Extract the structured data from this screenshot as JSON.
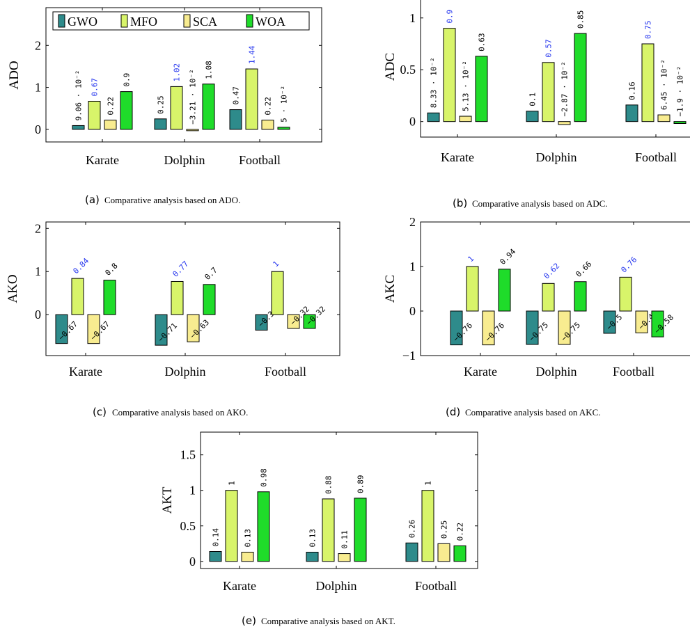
{
  "colors": {
    "GWO": "#2e8b8b",
    "MFO": "#d8f46a",
    "SCA": "#f8ec90",
    "WOA": "#1fdc2a",
    "best_label": "#2233ee"
  },
  "chart_data": [
    {
      "id": "ado",
      "type": "bar",
      "caption_letter": "(a)",
      "caption_text": "Comparative analysis based on ADO.",
      "ylabel": "ADO",
      "categories": [
        "Karate",
        "Dolphin",
        "Football"
      ],
      "ylim": [
        -0.3,
        2.9
      ],
      "yticks": [
        0,
        1,
        2
      ],
      "label_style": "vertical",
      "legend": {
        "shown": true,
        "placement": "top"
      },
      "series": [
        {
          "name": "GWO",
          "values": [
            0.0906,
            0.25,
            0.47
          ],
          "labels": [
            "9.06 · 10⁻²",
            "0.25",
            "0.47"
          ]
        },
        {
          "name": "MFO",
          "values": [
            0.67,
            1.02,
            1.44
          ],
          "labels": [
            "0.67",
            "1.02",
            "1.44"
          ],
          "best": true
        },
        {
          "name": "SCA",
          "values": [
            0.22,
            -0.0321,
            0.22
          ],
          "labels": [
            "0.22",
            "−3.21 · 10⁻²",
            "0.22"
          ]
        },
        {
          "name": "WOA",
          "values": [
            0.9,
            1.08,
            0.05
          ],
          "labels": [
            "0.9",
            "1.08",
            "5 · 10⁻²"
          ]
        }
      ]
    },
    {
      "id": "adc",
      "type": "bar",
      "caption_letter": "(b)",
      "caption_text": "Comparative analysis based on ADC.",
      "ylabel": "ADC",
      "categories": [
        "Karate",
        "Dolphin",
        "Football"
      ],
      "ylim": [
        -0.15,
        1.2
      ],
      "yticks": [
        0,
        0.5,
        1
      ],
      "label_style": "vertical",
      "series": [
        {
          "name": "GWO",
          "values": [
            0.0833,
            0.1,
            0.16
          ],
          "labels": [
            "8.33 · 10⁻²",
            "0.1",
            "0.16"
          ]
        },
        {
          "name": "MFO",
          "values": [
            0.9,
            0.57,
            0.75
          ],
          "labels": [
            "0.9",
            "0.57",
            "0.75"
          ],
          "best": true
        },
        {
          "name": "SCA",
          "values": [
            0.0513,
            -0.0287,
            0.0645
          ],
          "labels": [
            "5.13 · 10⁻²",
            "−2.87 · 10⁻²",
            "6.45 · 10⁻²"
          ]
        },
        {
          "name": "WOA",
          "values": [
            0.63,
            0.85,
            -0.019
          ],
          "labels": [
            "0.63",
            "0.85",
            "−1.9 · 10⁻²"
          ]
        }
      ]
    },
    {
      "id": "ako",
      "type": "bar",
      "caption_letter": "(c)",
      "caption_text": "Comparative analysis based on AKO.",
      "ylabel": "AKO",
      "categories": [
        "Karate",
        "Dolphin",
        "Football"
      ],
      "ylim": [
        -0.95,
        2.15
      ],
      "yticks": [
        0,
        1,
        2
      ],
      "label_style": "diagonal",
      "series": [
        {
          "name": "GWO",
          "values": [
            -0.67,
            -0.71,
            -0.36
          ],
          "labels": [
            "−0.67",
            "−0.71",
            "−0.36"
          ]
        },
        {
          "name": "MFO",
          "values": [
            0.84,
            0.77,
            1.0
          ],
          "labels": [
            "0.84",
            "0.77",
            "1"
          ],
          "best": true
        },
        {
          "name": "SCA",
          "values": [
            -0.67,
            -0.63,
            -0.32
          ],
          "labels": [
            "−0.67",
            "−0.63",
            "−0.32"
          ]
        },
        {
          "name": "WOA",
          "values": [
            0.8,
            0.7,
            -0.32
          ],
          "labels": [
            "0.8",
            "0.7",
            "−0.32"
          ]
        }
      ]
    },
    {
      "id": "akc",
      "type": "bar",
      "caption_letter": "(d)",
      "caption_text": "Comparative analysis based on AKC.",
      "ylabel": "AKC",
      "categories": [
        "Karate",
        "Dolphin",
        "Football"
      ],
      "ylim": [
        -1,
        2
      ],
      "yticks": [
        -1,
        0,
        1,
        2
      ],
      "label_style": "diagonal",
      "series": [
        {
          "name": "GWO",
          "values": [
            -0.76,
            -0.75,
            -0.5
          ],
          "labels": [
            "−0.76",
            "−0.75",
            "−0.5"
          ]
        },
        {
          "name": "MFO",
          "values": [
            1.0,
            0.62,
            0.76
          ],
          "labels": [
            "1",
            "0.62",
            "0.76"
          ],
          "best": true
        },
        {
          "name": "SCA",
          "values": [
            -0.76,
            -0.75,
            -0.49
          ],
          "labels": [
            "−0.76",
            "−0.75",
            "−0.49"
          ]
        },
        {
          "name": "WOA",
          "values": [
            0.94,
            0.66,
            -0.58
          ],
          "labels": [
            "0.94",
            "0.66",
            "−0.58"
          ]
        }
      ]
    },
    {
      "id": "akt",
      "type": "bar",
      "caption_letter": "(e)",
      "caption_text": "Comparative analysis based on AKT.",
      "ylabel": "AKT",
      "categories": [
        "Karate",
        "Dolphin",
        "Football"
      ],
      "ylim": [
        -0.1,
        1.82
      ],
      "yticks": [
        0,
        0.5,
        1,
        1.5
      ],
      "label_style": "vertical",
      "series": [
        {
          "name": "GWO",
          "values": [
            0.14,
            0.13,
            0.26
          ],
          "labels": [
            "0.14",
            "0.13",
            "0.26"
          ]
        },
        {
          "name": "MFO",
          "values": [
            1.0,
            0.88,
            1.0
          ],
          "labels": [
            "1",
            "0.88",
            "1"
          ]
        },
        {
          "name": "SCA",
          "values": [
            0.13,
            0.11,
            0.25
          ],
          "labels": [
            "0.13",
            "0.11",
            "0.25"
          ]
        },
        {
          "name": "WOA",
          "values": [
            0.98,
            0.89,
            0.22
          ],
          "labels": [
            "0.98",
            "0.89",
            "0.22"
          ]
        }
      ]
    }
  ]
}
